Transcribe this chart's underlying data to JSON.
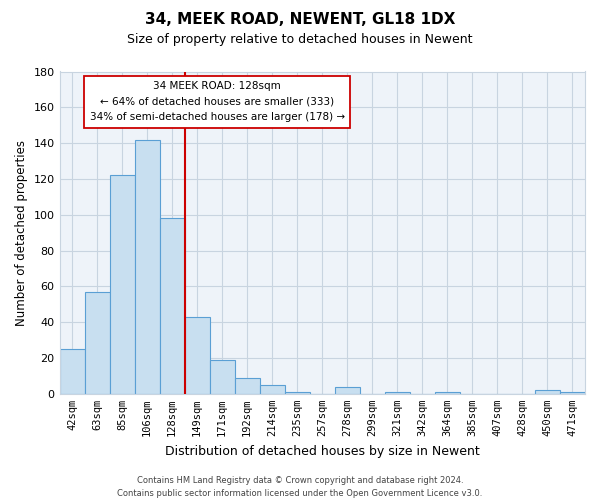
{
  "title": "34, MEEK ROAD, NEWENT, GL18 1DX",
  "subtitle": "Size of property relative to detached houses in Newent",
  "xlabel": "Distribution of detached houses by size in Newent",
  "ylabel": "Number of detached properties",
  "bar_labels": [
    "42sqm",
    "63sqm",
    "85sqm",
    "106sqm",
    "128sqm",
    "149sqm",
    "171sqm",
    "192sqm",
    "214sqm",
    "235sqm",
    "257sqm",
    "278sqm",
    "299sqm",
    "321sqm",
    "342sqm",
    "364sqm",
    "385sqm",
    "407sqm",
    "428sqm",
    "450sqm",
    "471sqm"
  ],
  "bar_values": [
    25,
    57,
    122,
    142,
    98,
    43,
    19,
    9,
    5,
    1,
    0,
    4,
    0,
    1,
    0,
    1,
    0,
    0,
    0,
    2,
    1
  ],
  "bar_color": "#c8dff0",
  "bar_edge_color": "#5a9fd4",
  "vline_index": 4,
  "vline_color": "#cc0000",
  "ylim": [
    0,
    180
  ],
  "yticks": [
    0,
    20,
    40,
    60,
    80,
    100,
    120,
    140,
    160,
    180
  ],
  "annotation_title": "34 MEEK ROAD: 128sqm",
  "annotation_line1": "← 64% of detached houses are smaller (333)",
  "annotation_line2": "34% of semi-detached houses are larger (178) →",
  "footer_line1": "Contains HM Land Registry data © Crown copyright and database right 2024.",
  "footer_line2": "Contains public sector information licensed under the Open Government Licence v3.0.",
  "background_color": "#ffffff",
  "plot_bg_color": "#eef3f9",
  "grid_color": "#c8d4e0"
}
